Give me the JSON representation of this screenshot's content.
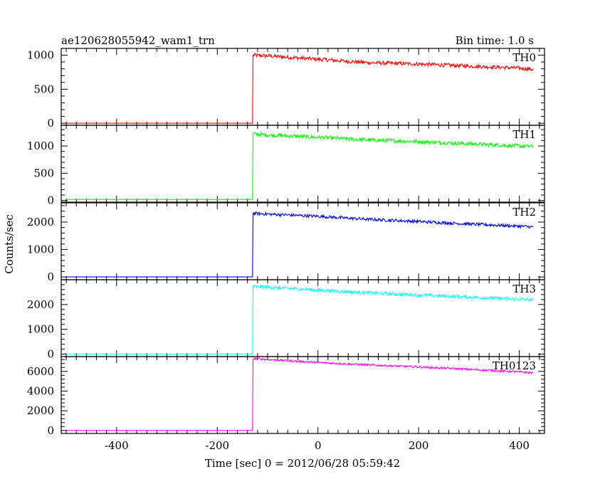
{
  "header": {
    "title": "ae120628055942_wam1_trn",
    "bin_time": "Bin time: 1.0 s"
  },
  "chart_data": {
    "type": "line",
    "xlabel": "Time [sec] 0 = 2012/06/28 05:59:42",
    "ylabel": "Counts/sec",
    "xlim": [
      -510,
      450
    ],
    "x_ticks": [
      -400,
      -200,
      0,
      200,
      400
    ],
    "grid": false,
    "panels": [
      {
        "name": "TH0",
        "color": "#ff0000",
        "ylim": [
          -30,
          1100
        ],
        "y_ticks": [
          0,
          500,
          1000
        ],
        "x": [
          -500,
          -130,
          -129,
          -100,
          0,
          100,
          200,
          300,
          400,
          428
        ],
        "values": [
          0,
          0,
          1000,
          990,
          940,
          890,
          870,
          840,
          810,
          790
        ],
        "noise": 28
      },
      {
        "name": "TH1",
        "color": "#00ff00",
        "ylim": [
          -30,
          1380
        ],
        "y_ticks": [
          0,
          500,
          1000
        ],
        "x": [
          -500,
          -130,
          -129,
          -100,
          0,
          100,
          200,
          300,
          400,
          428
        ],
        "values": [
          20,
          20,
          1220,
          1200,
          1160,
          1110,
          1080,
          1040,
          1000,
          990
        ],
        "noise": 35
      },
      {
        "name": "TH2",
        "color": "#0000ff",
        "ylim": [
          -100,
          2700
        ],
        "y_ticks": [
          0,
          1000,
          2000
        ],
        "x": [
          -500,
          -130,
          -129,
          -100,
          0,
          100,
          200,
          300,
          400,
          428
        ],
        "values": [
          0,
          0,
          2320,
          2290,
          2210,
          2100,
          2020,
          1930,
          1850,
          1820
        ],
        "noise": 55
      },
      {
        "name": "TH3",
        "color": "#00ffff",
        "ylim": [
          -100,
          3000
        ],
        "y_ticks": [
          0,
          1000,
          2000
        ],
        "x": [
          -500,
          -130,
          -129,
          -100,
          0,
          100,
          200,
          300,
          400,
          428
        ],
        "values": [
          0,
          0,
          2720,
          2700,
          2580,
          2470,
          2380,
          2300,
          2210,
          2180
        ],
        "noise": 65
      },
      {
        "name": "TH0123",
        "color": "#ff00ff",
        "ylim": [
          -300,
          7500
        ],
        "y_ticks": [
          0,
          2000,
          4000,
          6000
        ],
        "x": [
          -500,
          -130,
          -129,
          -100,
          0,
          100,
          200,
          300,
          400,
          428
        ],
        "values": [
          0,
          0,
          7300,
          7200,
          6900,
          6650,
          6450,
          6200,
          5950,
          5850
        ],
        "noise": 100
      }
    ]
  }
}
